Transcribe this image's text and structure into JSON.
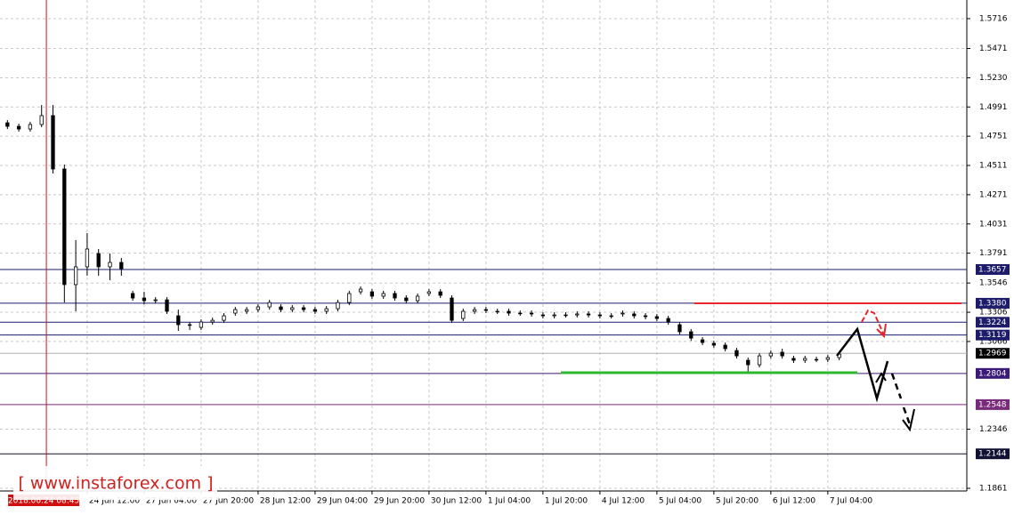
{
  "chart_data": {
    "type": "candlestick",
    "watermark": "[ www.instaforex.com ]",
    "cursor_label": "2018.06.24 08:45",
    "cursor_x": 3.42,
    "open": [
      1.4861,
      1.4832,
      1.481,
      1.4847,
      1.492,
      1.4482,
      1.3533,
      1.3679,
      1.3788,
      1.3679,
      1.3715,
      1.346,
      1.3423,
      1.3401,
      1.3408,
      1.3277,
      1.3204,
      1.3182,
      1.3226,
      1.324,
      1.3299,
      1.3314,
      1.3328,
      1.335,
      1.335,
      1.3328,
      1.3343,
      1.3328,
      1.3314,
      1.3335,
      1.3386,
      1.3474,
      1.3474,
      1.3438,
      1.346,
      1.3423,
      1.3401,
      1.346,
      1.3474,
      1.3423,
      1.3255,
      1.3314,
      1.3328,
      1.3314,
      1.3314,
      1.3299,
      1.3299,
      1.3284,
      1.3277,
      1.3284,
      1.3284,
      1.3292,
      1.3284,
      1.3277,
      1.3292,
      1.3292,
      1.3277,
      1.327,
      1.3255,
      1.3204,
      1.3146,
      1.308,
      1.3051,
      1.3036,
      1.2992,
      1.2912,
      1.2875,
      1.2948,
      1.2978,
      1.2927,
      1.2912,
      1.2919,
      1.2919,
      1.2934
    ],
    "high": [
      1.4883,
      1.4854,
      1.4869,
      1.5007,
      1.5007,
      1.4518,
      1.3898,
      1.3956,
      1.3825,
      1.3788,
      1.3752,
      1.3482,
      1.3474,
      1.343,
      1.343,
      1.3328,
      1.3226,
      1.3248,
      1.3262,
      1.3299,
      1.335,
      1.335,
      1.3372,
      1.3408,
      1.3372,
      1.3365,
      1.3365,
      1.335,
      1.3357,
      1.3408,
      1.3482,
      1.3518,
      1.3496,
      1.3482,
      1.3482,
      1.3445,
      1.346,
      1.3496,
      1.3496,
      1.3445,
      1.3336,
      1.335,
      1.335,
      1.3336,
      1.3336,
      1.3321,
      1.3321,
      1.3306,
      1.3306,
      1.3306,
      1.3314,
      1.3314,
      1.3306,
      1.3299,
      1.3321,
      1.3314,
      1.3299,
      1.3292,
      1.3277,
      1.3226,
      1.3168,
      1.3102,
      1.3073,
      1.3058,
      1.3014,
      1.2934,
      1.297,
      1.2992,
      1.3007,
      1.2949,
      1.2949,
      1.2941,
      1.2956,
      1.2985
    ],
    "low": [
      1.481,
      1.4788,
      1.4788,
      1.4825,
      1.4445,
      1.3386,
      1.3314,
      1.3606,
      1.3606,
      1.3569,
      1.3606,
      1.3401,
      1.3372,
      1.3379,
      1.3292,
      1.3153,
      1.316,
      1.316,
      1.3204,
      1.3218,
      1.3277,
      1.3292,
      1.3306,
      1.3328,
      1.3306,
      1.3306,
      1.3306,
      1.3292,
      1.3292,
      1.3314,
      1.3364,
      1.3452,
      1.3416,
      1.3416,
      1.3401,
      1.3379,
      1.3379,
      1.3438,
      1.3423,
      1.3218,
      1.3233,
      1.3292,
      1.3299,
      1.3292,
      1.3277,
      1.3277,
      1.327,
      1.3255,
      1.3255,
      1.3262,
      1.3262,
      1.3262,
      1.3255,
      1.3255,
      1.327,
      1.3255,
      1.3248,
      1.3233,
      1.3204,
      1.3124,
      1.3072,
      1.3036,
      1.3014,
      1.2985,
      1.2926,
      1.2817,
      1.2853,
      1.2926,
      1.2926,
      1.289,
      1.289,
      1.2897,
      1.2897,
      1.2912
    ],
    "close": [
      1.4832,
      1.481,
      1.4847,
      1.492,
      1.4482,
      1.3533,
      1.3679,
      1.3825,
      1.3679,
      1.3715,
      1.3664,
      1.3423,
      1.3401,
      1.3408,
      1.3314,
      1.3204,
      1.3204,
      1.3226,
      1.324,
      1.3277,
      1.3328,
      1.3328,
      1.335,
      1.3386,
      1.3328,
      1.3343,
      1.3328,
      1.3314,
      1.3335,
      1.3386,
      1.346,
      1.3496,
      1.3438,
      1.346,
      1.3423,
      1.3401,
      1.3438,
      1.3474,
      1.3445,
      1.324,
      1.3314,
      1.3328,
      1.3321,
      1.3314,
      1.3299,
      1.3299,
      1.3292,
      1.3277,
      1.3284,
      1.3284,
      1.3292,
      1.3284,
      1.3277,
      1.3277,
      1.3299,
      1.3277,
      1.327,
      1.3255,
      1.3226,
      1.3146,
      1.3094,
      1.3058,
      1.3036,
      1.3007,
      1.2948,
      1.2875,
      1.2948,
      1.297,
      1.2948,
      1.2912,
      1.2927,
      1.2919,
      1.2934,
      1.2963
    ],
    "xlim": [
      -0.65,
      84.2
    ],
    "xticks": [
      {
        "value": 7,
        "label": "24 Jun 12:00"
      },
      {
        "value": 12,
        "label": "27 Jun 04:00"
      },
      {
        "value": 17,
        "label": "27 Jun 20:00"
      },
      {
        "value": 22,
        "label": "28 Jun 12:00"
      },
      {
        "value": 27,
        "label": "29 Jun 04:00"
      },
      {
        "value": 32,
        "label": "29 Jun 20:00"
      },
      {
        "value": 37,
        "label": "30 Jun 12:00"
      },
      {
        "value": 42,
        "label": "1 Jul 04:00"
      },
      {
        "value": 47,
        "label": "1 Jul 20:00"
      },
      {
        "value": 52,
        "label": "4 Jul 12:00"
      },
      {
        "value": 57,
        "label": "5 Jul 04:00"
      },
      {
        "value": 62,
        "label": "5 Jul 20:00"
      },
      {
        "value": 67,
        "label": "6 Jul 12:00"
      },
      {
        "value": 72,
        "label": "7 Jul 04:00"
      }
    ],
    "ylim": [
      1.1839,
      1.5869
    ],
    "yticks": [
      1.1861,
      1.2346,
      1.3066,
      1.3306,
      1.3546,
      1.3791,
      1.4031,
      1.4271,
      1.4511,
      1.4751,
      1.4991,
      {
        "value": 1.523,
        "label": "1.5230"
      },
      1.5471,
      1.5716
    ],
    "grid": true,
    "levels": [
      {
        "value": 1.3657,
        "color": "#1c1c6b"
      },
      {
        "value": 1.338,
        "label": "1.3380",
        "color": "#1c1c6b"
      },
      {
        "value": 1.3224,
        "color": "#1c1c6b"
      },
      {
        "value": 1.3119,
        "color": "#1c1c6b"
      },
      {
        "value": 1.2969,
        "color": "#000000",
        "line_color": "#b0b0b0"
      },
      {
        "value": 1.2804,
        "color": "#3b1a78"
      },
      {
        "value": 1.2548,
        "color": "#7a2a7a"
      },
      {
        "value": 1.2144,
        "color": "#111133"
      }
    ]
  }
}
